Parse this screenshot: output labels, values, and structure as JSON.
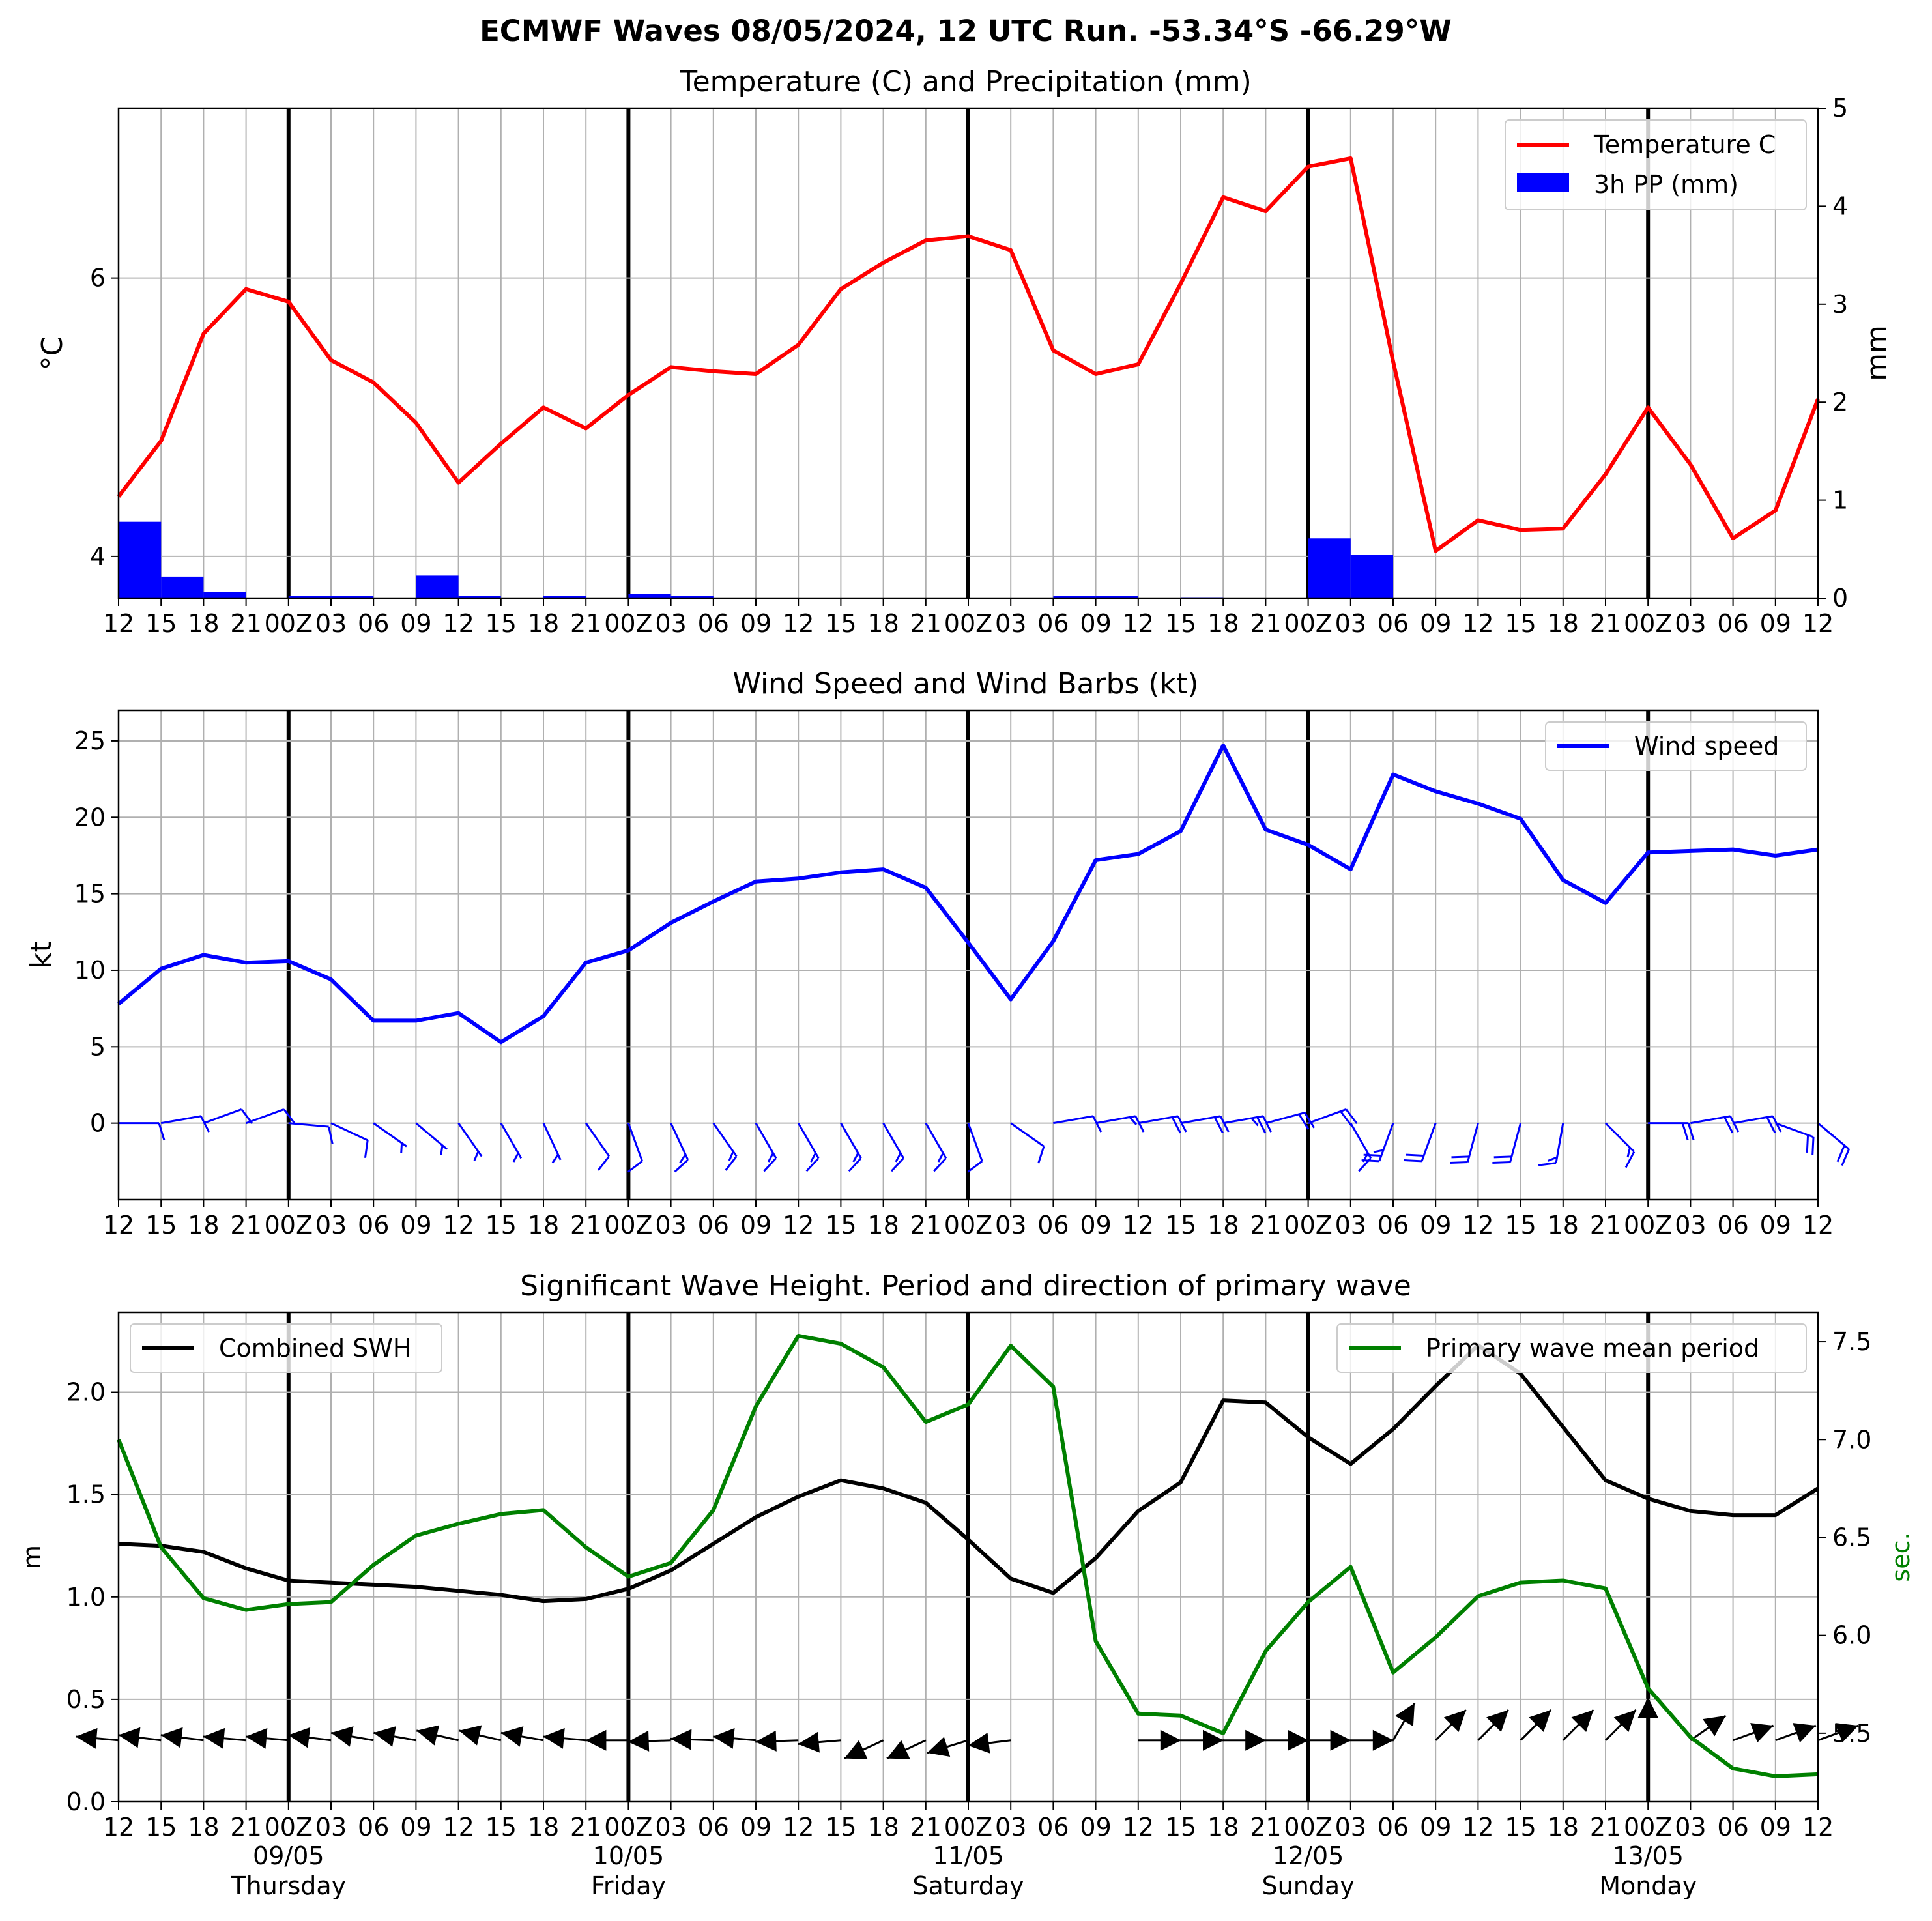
{
  "figure": {
    "title": "ECMWF Waves 08/05/2024, 12 UTC Run. -53.34°S -66.29°W"
  },
  "x_axis": {
    "tick_labels": [
      "12",
      "15",
      "18",
      "21",
      "00Z",
      "03",
      "06",
      "09",
      "12",
      "15",
      "18",
      "21",
      "00Z",
      "03",
      "06",
      "09",
      "12",
      "15",
      "18",
      "21",
      "00Z",
      "03",
      "06",
      "09",
      "12",
      "15",
      "18",
      "21",
      "00Z",
      "03",
      "06",
      "09",
      "12",
      "15",
      "18",
      "21",
      "00Z",
      "03",
      "06",
      "09",
      "12"
    ],
    "day_markers": [
      {
        "date": "09/05",
        "day": "Thursday"
      },
      {
        "date": "10/05",
        "day": "Friday"
      },
      {
        "date": "11/05",
        "day": "Saturday"
      },
      {
        "date": "12/05",
        "day": "Sunday"
      },
      {
        "date": "13/05",
        "day": "Monday"
      }
    ]
  },
  "chart_data": [
    {
      "type": "line",
      "title": "Temperature (C) and Precipitation (mm)",
      "ylabel": "$^\\circ$C",
      "ylim": [
        3.7,
        7.22
      ],
      "yticks": [
        4,
        6
      ],
      "y2label": "mm",
      "y2lim": [
        0,
        5
      ],
      "y2ticks": [
        0,
        1,
        2,
        3,
        4,
        5
      ],
      "legend_position": "top-right",
      "grid": true,
      "series": [
        {
          "name": "Temperature C",
          "kind": "line",
          "color": "#ff0000",
          "axis": "left",
          "values": [
            4.43,
            4.83,
            5.6,
            5.92,
            5.83,
            5.41,
            5.25,
            4.96,
            4.53,
            4.81,
            5.07,
            4.92,
            5.16,
            5.36,
            5.33,
            5.31,
            5.52,
            5.92,
            6.11,
            6.27,
            6.3,
            6.2,
            5.48,
            5.31,
            5.38,
            5.96,
            6.58,
            6.48,
            6.8,
            6.86,
            5.4,
            4.04,
            4.26,
            4.19,
            4.2,
            4.59,
            5.07,
            4.66,
            4.13,
            4.33,
            5.13
          ]
        },
        {
          "name": "3h PP (mm)",
          "kind": "bar",
          "color": "#0000ff",
          "axis": "right",
          "values": [
            0.78,
            0.22,
            0.06,
            0,
            0.02,
            0.02,
            0,
            0.23,
            0.02,
            0,
            0.02,
            0,
            0.04,
            0.02,
            0,
            0,
            0,
            0,
            0,
            0,
            0,
            0,
            0.02,
            0.02,
            0,
            0.01,
            0,
            0,
            0.61,
            0.44,
            0,
            0,
            0,
            0,
            0,
            0,
            0,
            0,
            0,
            0
          ]
        }
      ]
    },
    {
      "type": "line",
      "title": "Wind Speed and Wind Barbs (kt)",
      "ylabel": "kt",
      "ylim": [
        -5,
        27
      ],
      "yticks": [
        0,
        5,
        10,
        15,
        20,
        25
      ],
      "legend_position": "top-right",
      "grid": true,
      "series": [
        {
          "name": "Wind speed",
          "kind": "line",
          "color": "#0000ff",
          "values": [
            7.8,
            10.1,
            11,
            10.5,
            10.6,
            9.4,
            6.7,
            6.7,
            7.2,
            5.3,
            7,
            10.5,
            11.3,
            13.1,
            14.5,
            15.8,
            16,
            16.4,
            16.6,
            15.4,
            11.8,
            8.1,
            11.9,
            17.2,
            17.6,
            19.1,
            24.7,
            19.2,
            18.2,
            16.6,
            22.8,
            21.7,
            20.9,
            19.9,
            15.9,
            14.4,
            17.7,
            17.8,
            17.9,
            17.5,
            17.9
          ]
        },
        {
          "name": "wind barbs",
          "kind": "barbs",
          "color": "#0000ff",
          "directions_deg": [
            90,
            80,
            70,
            70,
            95,
            115,
            125,
            130,
            145,
            150,
            155,
            145,
            160,
            155,
            145,
            150,
            150,
            150,
            150,
            150,
            160,
            125,
            80,
            80,
            80,
            80,
            80,
            75,
            70,
            150,
            200,
            200,
            195,
            195,
            190,
            135,
            90,
            80,
            80,
            110,
            130
          ],
          "speeds_kt": [
            7.8,
            10.1,
            11,
            10.5,
            10.6,
            9.4,
            6.7,
            6.7,
            7.2,
            5.3,
            7,
            10.5,
            11.3,
            13.1,
            14.5,
            15.8,
            16,
            16.4,
            16.6,
            15.4,
            11.8,
            8.1,
            11.9,
            17.2,
            17.6,
            19.1,
            24.7,
            19.2,
            18.2,
            16.6,
            22.8,
            21.7,
            20.9,
            19.9,
            15.9,
            14.4,
            17.7,
            17.8,
            17.9,
            17.5,
            17.9
          ]
        }
      ]
    },
    {
      "type": "line",
      "title": "Significant Wave Height. Period and direction of primary wave",
      "ylabel": "m",
      "ylim": [
        0,
        2.39
      ],
      "yticks": [
        "0.0",
        "0.5",
        "1.0",
        "1.5",
        "2.0"
      ],
      "y2label": "sec.",
      "y2lim": [
        5.15,
        7.65
      ],
      "y2ticks": [
        "5.5",
        "6.0",
        "6.5",
        "7.0",
        "7.5"
      ],
      "grid": true,
      "series": [
        {
          "name": "Combined SWH",
          "kind": "line",
          "color": "#000000",
          "axis": "left",
          "legend_position": "top-left",
          "values": [
            1.26,
            1.25,
            1.22,
            1.14,
            1.08,
            1.07,
            1.06,
            1.05,
            1.03,
            1.01,
            0.98,
            0.99,
            1.04,
            1.13,
            1.26,
            1.39,
            1.49,
            1.57,
            1.53,
            1.46,
            1.28,
            1.09,
            1.02,
            1.19,
            1.42,
            1.56,
            1.96,
            1.95,
            1.78,
            1.65,
            1.82,
            2.03,
            2.23,
            2.09,
            1.83,
            1.57,
            1.48,
            1.42,
            1.4,
            1.4,
            1.53
          ]
        },
        {
          "name": "Primary wave mean period",
          "kind": "line",
          "color": "#008000",
          "axis": "right",
          "legend_position": "top-right",
          "values": [
            7.0,
            6.45,
            6.19,
            6.13,
            6.16,
            6.17,
            6.36,
            6.51,
            6.57,
            6.62,
            6.64,
            6.45,
            6.3,
            6.37,
            6.64,
            7.17,
            7.53,
            7.49,
            7.37,
            7.09,
            7.18,
            7.48,
            7.27,
            5.97,
            5.6,
            5.59,
            5.5,
            5.92,
            6.17,
            6.35,
            5.81,
            5.99,
            6.2,
            6.27,
            6.28,
            6.24,
            5.73,
            5.48,
            5.32,
            5.28,
            5.29
          ]
        },
        {
          "name": "primary wave direction",
          "kind": "arrows",
          "color": "#000000",
          "directions_deg": [
            95,
            97,
            97,
            95,
            95,
            97,
            100,
            100,
            103,
            103,
            100,
            95,
            90,
            88,
            92,
            95,
            88,
            85,
            65,
            65,
            73,
            83,
            null,
            null,
            270,
            270,
            270,
            270,
            270,
            270,
            210,
            225,
            225,
            225,
            225,
            225,
            180,
            235,
            250,
            250,
            250
          ]
        }
      ]
    }
  ]
}
